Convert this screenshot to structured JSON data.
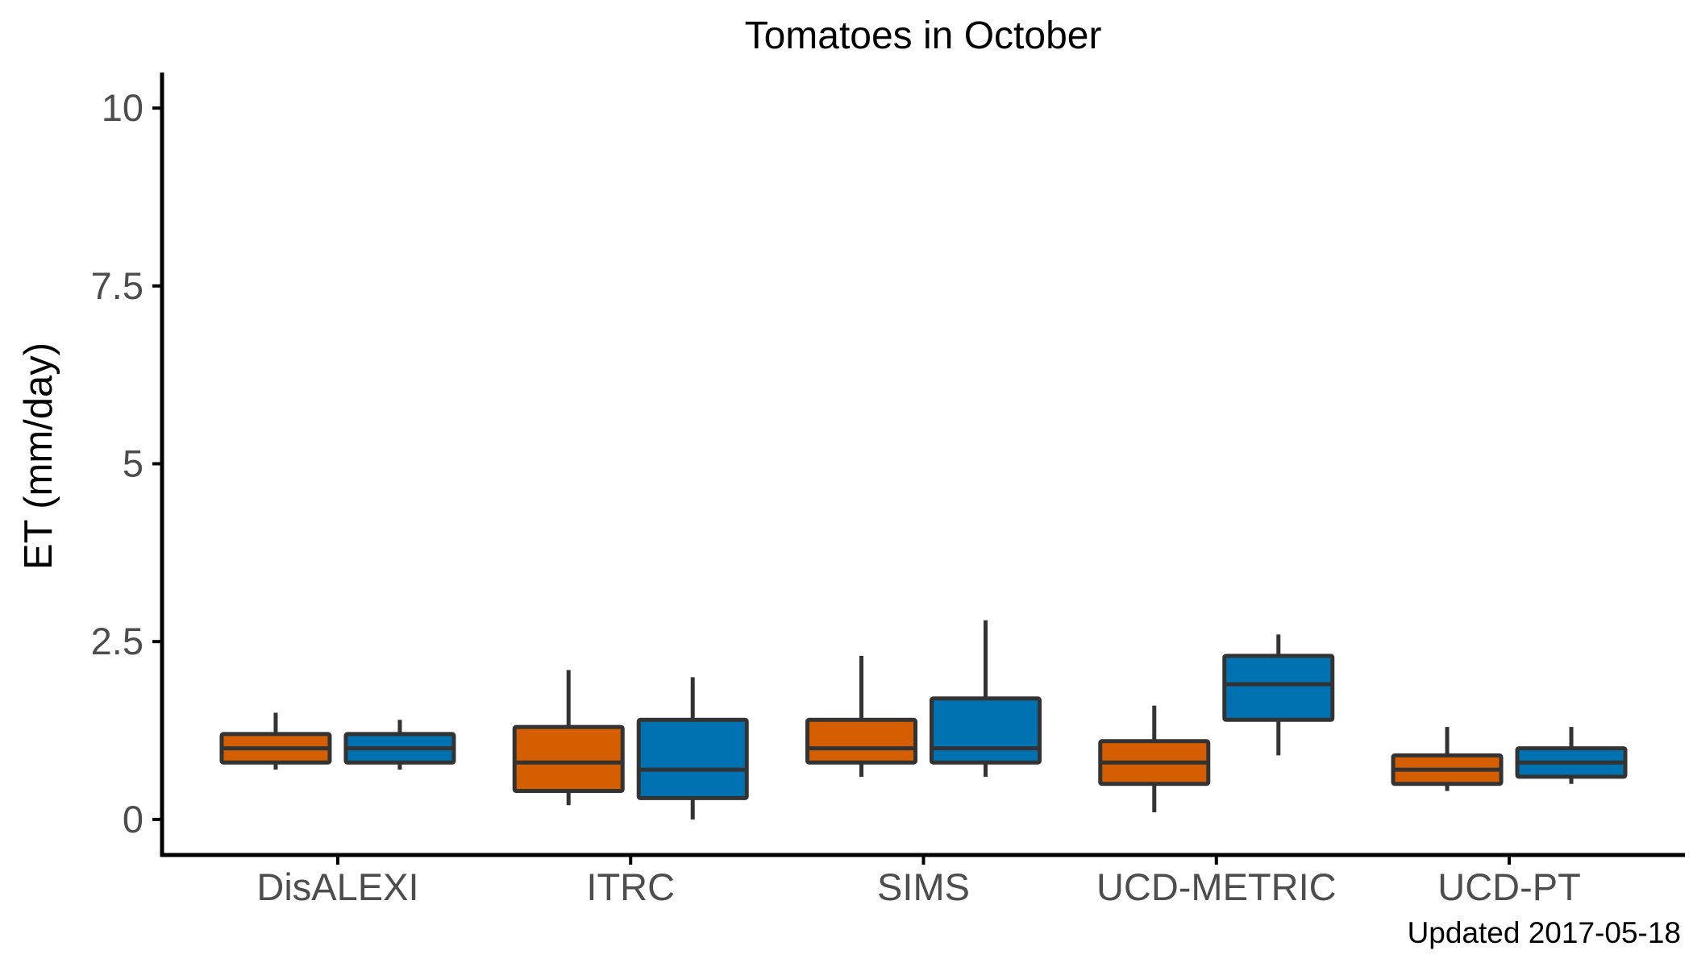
{
  "chart_data": {
    "type": "boxplot",
    "title": "Tomatoes in October",
    "xlabel": "",
    "ylabel": "ET (mm/day)",
    "ylim": [
      -0.5,
      10.5
    ],
    "yticks": [
      0,
      2.5,
      5,
      7.5,
      10
    ],
    "ytick_labels": [
      "0",
      "2.5",
      "5",
      "7.5",
      "10"
    ],
    "categories": [
      "DisALEXI",
      "ITRC",
      "SIMS",
      "UCD-METRIC",
      "UCD-PT"
    ],
    "legend": "none",
    "grid": false,
    "series": [
      {
        "color": "#D55E00",
        "boxes": [
          {
            "min": 0.7,
            "q1": 0.8,
            "median": 1.0,
            "q3": 1.2,
            "max": 1.5
          },
          {
            "min": 0.2,
            "q1": 0.4,
            "median": 0.8,
            "q3": 1.3,
            "max": 2.1
          },
          {
            "min": 0.6,
            "q1": 0.8,
            "median": 1.0,
            "q3": 1.4,
            "max": 2.3
          },
          {
            "min": 0.1,
            "q1": 0.5,
            "median": 0.8,
            "q3": 1.1,
            "max": 1.6
          },
          {
            "min": 0.4,
            "q1": 0.5,
            "median": 0.7,
            "q3": 0.9,
            "max": 1.3
          }
        ]
      },
      {
        "color": "#0072B2",
        "boxes": [
          {
            "min": 0.7,
            "q1": 0.8,
            "median": 1.0,
            "q3": 1.2,
            "max": 1.4
          },
          {
            "min": 0.0,
            "q1": 0.3,
            "median": 0.7,
            "q3": 1.4,
            "max": 2.0
          },
          {
            "min": 0.6,
            "q1": 0.8,
            "median": 1.0,
            "q3": 1.7,
            "max": 2.8
          },
          {
            "min": 0.9,
            "q1": 1.4,
            "median": 1.9,
            "q3": 2.3,
            "max": 2.6
          },
          {
            "min": 0.5,
            "q1": 0.6,
            "median": 0.8,
            "q3": 1.0,
            "max": 1.3
          }
        ]
      }
    ]
  },
  "footnote": "Updated  2017-05-18"
}
